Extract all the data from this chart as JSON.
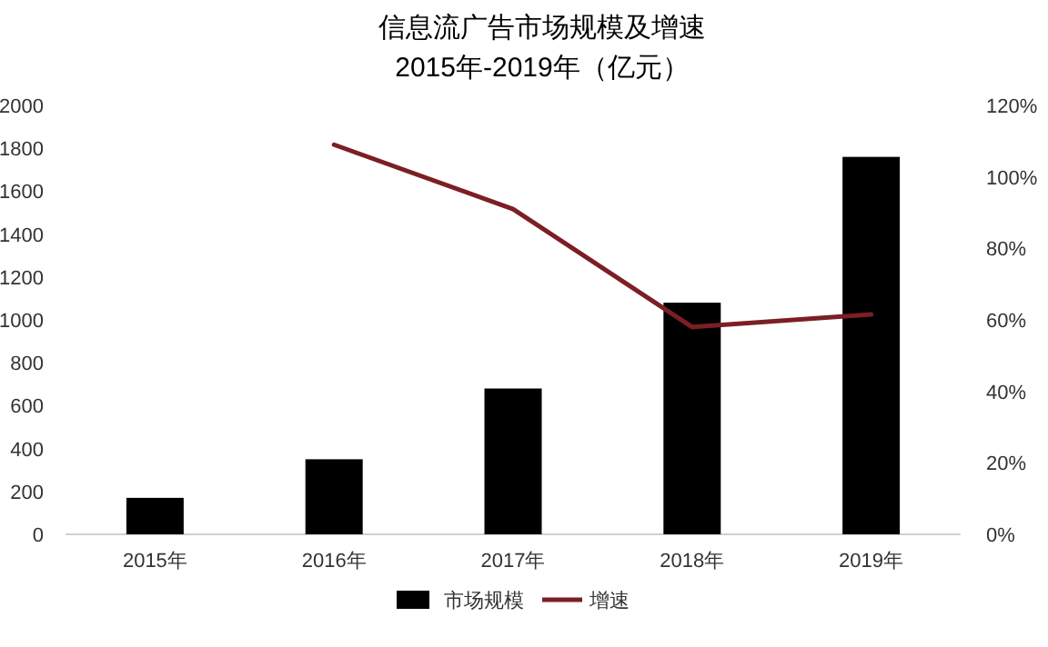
{
  "chart_data": {
    "type": "bar",
    "title": "信息流广告市场规模及增速",
    "subtitle": "2015年-2019年（亿元）",
    "categories": [
      "2015年",
      "2016年",
      "2017年",
      "2018年",
      "2019年"
    ],
    "series": [
      {
        "name": "市场规模",
        "color": "#000000",
        "values": [
          170,
          350,
          680,
          1080,
          1760
        ]
      },
      {
        "name": "增速",
        "type": "line",
        "axis": "y2",
        "color": "#7b1f24",
        "values": [
          null,
          109,
          91,
          58,
          61.5
        ]
      }
    ],
    "ylim": [
      0,
      2000
    ],
    "yticks": [
      0,
      200,
      400,
      600,
      800,
      1000,
      1200,
      1400,
      1600,
      1800,
      2000
    ],
    "y2lim": [
      0,
      120
    ],
    "y2ticks": [
      {
        "value": 0,
        "label": "0%"
      },
      {
        "value": 20,
        "label": "20%"
      },
      {
        "value": 40,
        "label": "40%"
      },
      {
        "value": 60,
        "label": "60%"
      },
      {
        "value": 80,
        "label": "80%"
      },
      {
        "value": 100,
        "label": "100%"
      },
      {
        "value": 120,
        "label": "120%"
      }
    ],
    "grid": false,
    "legend": "bottom",
    "marker": "none",
    "line_style": "solid"
  }
}
